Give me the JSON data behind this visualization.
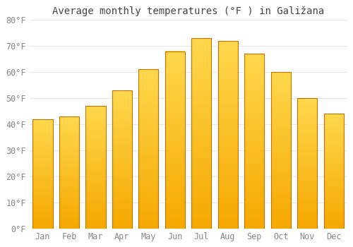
{
  "title": "Average monthly temperatures (°F ) in Galižana",
  "months": [
    "Jan",
    "Feb",
    "Mar",
    "Apr",
    "May",
    "Jun",
    "Jul",
    "Aug",
    "Sep",
    "Oct",
    "Nov",
    "Dec"
  ],
  "values": [
    42,
    43,
    47,
    53,
    61,
    68,
    73,
    72,
    67,
    60,
    50,
    44
  ],
  "bar_color_bottom": "#F5A800",
  "bar_color_top": "#FFD84D",
  "bar_edge_color": "#C87000",
  "background_color": "#FFFFFF",
  "grid_color": "#E8E8E8",
  "text_color": "#888888",
  "title_color": "#444444",
  "ylim": [
    0,
    80
  ],
  "yticks": [
    0,
    10,
    20,
    30,
    40,
    50,
    60,
    70,
    80
  ],
  "ytick_labels": [
    "0°F",
    "10°F",
    "20°F",
    "30°F",
    "40°F",
    "50°F",
    "60°F",
    "70°F",
    "80°F"
  ],
  "title_fontsize": 10,
  "tick_fontsize": 8.5,
  "bar_width": 0.75
}
